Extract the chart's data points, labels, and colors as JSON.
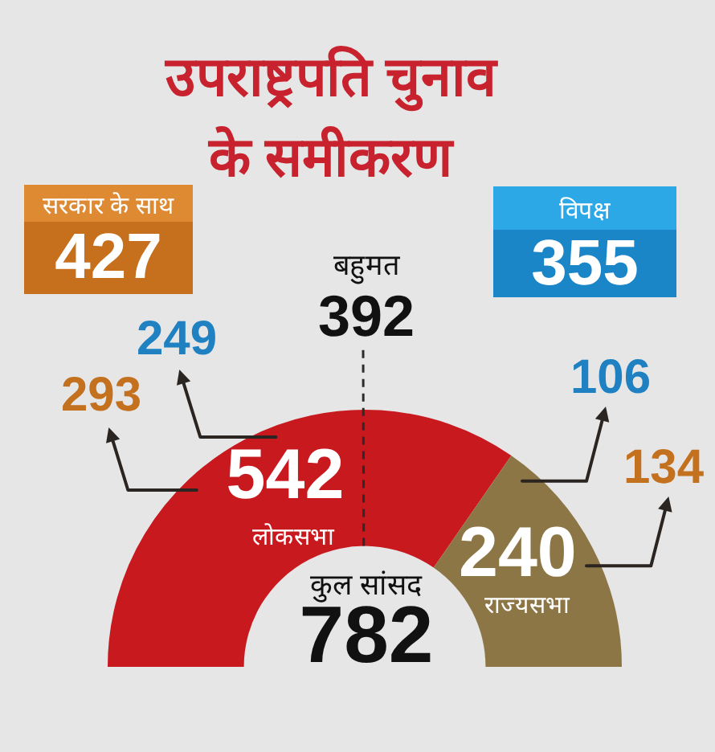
{
  "chart_data": {
    "type": "donut",
    "title": "उपराष्ट्रपति चुनाव के समीकरण",
    "categories": [
      "लोकसभा",
      "राज्यसभा"
    ],
    "values": [
      542,
      240
    ],
    "colors": [
      "#c8191f",
      "#8d7646"
    ],
    "data_labels": true,
    "legend": false,
    "annotations": [
      "सरकार के साथ",
      "427",
      "विपक्ष",
      "355",
      "बहुमत",
      {
        "text": "392",
        "x": "लोकसभा"
      },
      {
        "text": "293",
        "x": "लोकसभा"
      },
      {
        "text": "249",
        "x": "लोकसभा"
      },
      {
        "text": "106",
        "x": "राज्यसभा"
      },
      {
        "text": "134",
        "x": "राज्यसभा"
      },
      "कुल सांसद",
      "782"
    ]
  }
}
